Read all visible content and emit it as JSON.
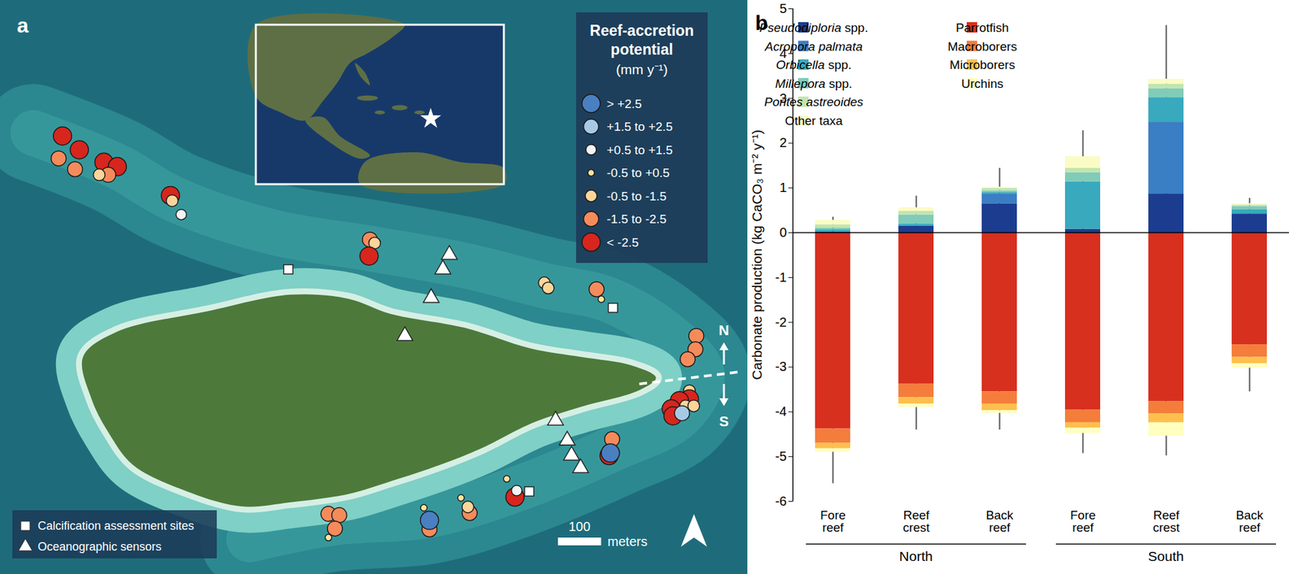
{
  "chart_data": [
    {
      "type": "map",
      "panel_label": "a",
      "xlim": [
        0,
        1731
      ],
      "ylim": [
        0,
        1329
      ],
      "tick_labels": false,
      "legend_title": "Reef-accretion potential",
      "legend_subtitle": "(mm y⁻¹)",
      "classes": [
        {
          "label": "> +2.5",
          "color": "#4a7fc1"
        },
        {
          "label": "+1.5 to +2.5",
          "color": "#a8c9e6"
        },
        {
          "label": "+0.5 to +1.5",
          "color": "#f2f5f7"
        },
        {
          "label": "-0.5 to +0.5",
          "color": "#fde59e"
        },
        {
          "label": "-0.5 to -1.5",
          "color": "#fdd59a"
        },
        {
          "label": "-1.5 to -2.5",
          "color": "#f58b5b"
        },
        {
          "label": "< -2.5",
          "color": "#d7261e"
        }
      ],
      "sites": {
        "x": [
          144,
          183,
          135,
          173,
          240,
          271,
          250,
          229,
          394,
          398,
          419,
          856,
          867,
          854,
          1260,
          1269,
          1381,
          1392,
          1612,
          1610,
          1592,
          1596,
          1596,
          1573,
          1554,
          1587,
          1606,
          1558,
          1579,
          1417,
          1410,
          1413,
          1173,
          1192,
          1196,
          1067,
          1087,
          1083,
          981,
          994,
          994,
          760,
          785,
          775,
          760
        ],
        "y": [
          1015,
          983,
          963,
          938,
          954,
          944,
          925,
          925,
          877,
          865,
          833,
          775,
          767,
          737,
          675,
          663,
          660,
          637,
          552,
          521,
          498,
          425,
          406,
          402,
          383,
          390,
          390,
          367,
          373,
          313,
          275,
          281,
          221,
          179,
          194,
          177,
          142,
          156,
          154,
          104,
          125,
          140,
          137,
          106,
          85
        ],
        "class": [
          "< -2.5",
          "< -2.5",
          "-1.5 to -2.5",
          "-1.5 to -2.5",
          "< -2.5",
          "< -2.5",
          "-1.5 to -2.5",
          "-0.5 to -1.5",
          "< -2.5",
          "-0.5 to -1.5",
          "+0.5 to +1.5",
          "-1.5 to -2.5",
          "-0.5 to -1.5",
          "< -2.5",
          "-0.5 to -1.5",
          "-0.5 to -1.5",
          "-1.5 to -2.5",
          "-0.5 to +0.5",
          "-1.5 to -2.5",
          "-1.5 to -2.5",
          "-1.5 to -2.5",
          "-0.5 to -1.5",
          "< -2.5",
          "< -2.5",
          "< -2.5",
          "-0.5 to -1.5",
          "-0.5 to -1.5",
          "< -2.5",
          "+1.5 to +2.5",
          "-1.5 to -2.5",
          "< -2.5",
          "> +2.5",
          "-0.5 to +0.5",
          "< -2.5",
          "+0.5 to +1.5",
          "-0.5 to +0.5",
          "-1.5 to -2.5",
          "-0.5 to -1.5",
          "-0.5 to +0.5",
          "-1.5 to -2.5",
          "> +2.5",
          "-1.5 to -2.5",
          "-1.5 to -2.5",
          "-1.5 to -2.5",
          "-0.5 to +0.5"
        ]
      },
      "calcification_sites": {
        "name": "Calcification assessment sites",
        "x": [
          667,
          1419,
          1225
        ],
        "y": [
          706,
          617,
          192
        ]
      },
      "oceanographic_sensors": {
        "name": "Oceanographic sensors",
        "x": [
          1040,
          1025,
          998,
          937,
          1286,
          1313,
          1323,
          1344
        ],
        "y": [
          740,
          706,
          640,
          552,
          356,
          310,
          275,
          246
        ]
      },
      "scale_bar": {
        "value": 100,
        "label": "meters"
      },
      "divide_labels": [
        "N",
        "S"
      ]
    },
    {
      "type": "bar",
      "panel_label": "b",
      "stacked": true,
      "legend": "top-left",
      "ylabel": "Carbonate production (kg CaCO₃ m⁻² y⁻¹)",
      "categories": [
        "Fore reef",
        "Reef crest",
        "Back reef",
        "Fore reef",
        "Reef crest",
        "Back reef"
      ],
      "groups": [
        "North",
        "North",
        "North",
        "South",
        "South",
        "South"
      ],
      "ylim": [
        -6,
        5
      ],
      "yticks": [
        -6,
        -5,
        -4,
        -3,
        -2,
        -1,
        0,
        1,
        2,
        3,
        4,
        5
      ],
      "series": [
        {
          "name": "Pseudodiploria spp.",
          "color": "#1c3d8f",
          "values": [
            0.02,
            0.15,
            0.65,
            0.08,
            0.87,
            0.42
          ]
        },
        {
          "name": "Acropora palmata",
          "color": "#3a7ec4",
          "values": [
            0,
            0,
            0.22,
            0,
            1.6,
            0
          ]
        },
        {
          "name": "Orbicella spp.",
          "color": "#39a9bd",
          "values": [
            0.05,
            0.05,
            0.03,
            1.06,
            0.55,
            0.1
          ]
        },
        {
          "name": "Millepora spp.",
          "color": "#80ccb9",
          "values": [
            0.04,
            0.2,
            0.04,
            0.2,
            0.2,
            0.07
          ]
        },
        {
          "name": "Porites astreoides",
          "color": "#c3e5ad",
          "values": [
            0.07,
            0.08,
            0.05,
            0.1,
            0.1,
            0.03
          ]
        },
        {
          "name": "Other taxa",
          "color": "#fbfbc6",
          "values": [
            0.1,
            0.08,
            0.03,
            0.26,
            0.11,
            0.03
          ]
        },
        {
          "name": "Parrotfish",
          "color": "#d7301f",
          "values": [
            -4.38,
            -3.38,
            -3.55,
            -3.96,
            -3.77,
            -2.5
          ]
        },
        {
          "name": "Macroborers",
          "color": "#f47d3b",
          "values": [
            -0.32,
            -0.3,
            -0.27,
            -0.28,
            -0.27,
            -0.28
          ]
        },
        {
          "name": "Microborers",
          "color": "#fdbf4e",
          "values": [
            -0.12,
            -0.14,
            -0.15,
            -0.12,
            -0.2,
            -0.14
          ]
        },
        {
          "name": "Urchins",
          "color": "#ffffbf",
          "values": [
            -0.08,
            -0.08,
            -0.06,
            -0.12,
            -0.3,
            -0.1
          ]
        }
      ],
      "error_bar_top": [
        0.35,
        0.82,
        1.44,
        2.28,
        4.63,
        0.77
      ],
      "error_bar_bottom": [
        -5.6,
        -4.4,
        -4.4,
        -4.93,
        -4.98,
        -3.55
      ]
    }
  ]
}
